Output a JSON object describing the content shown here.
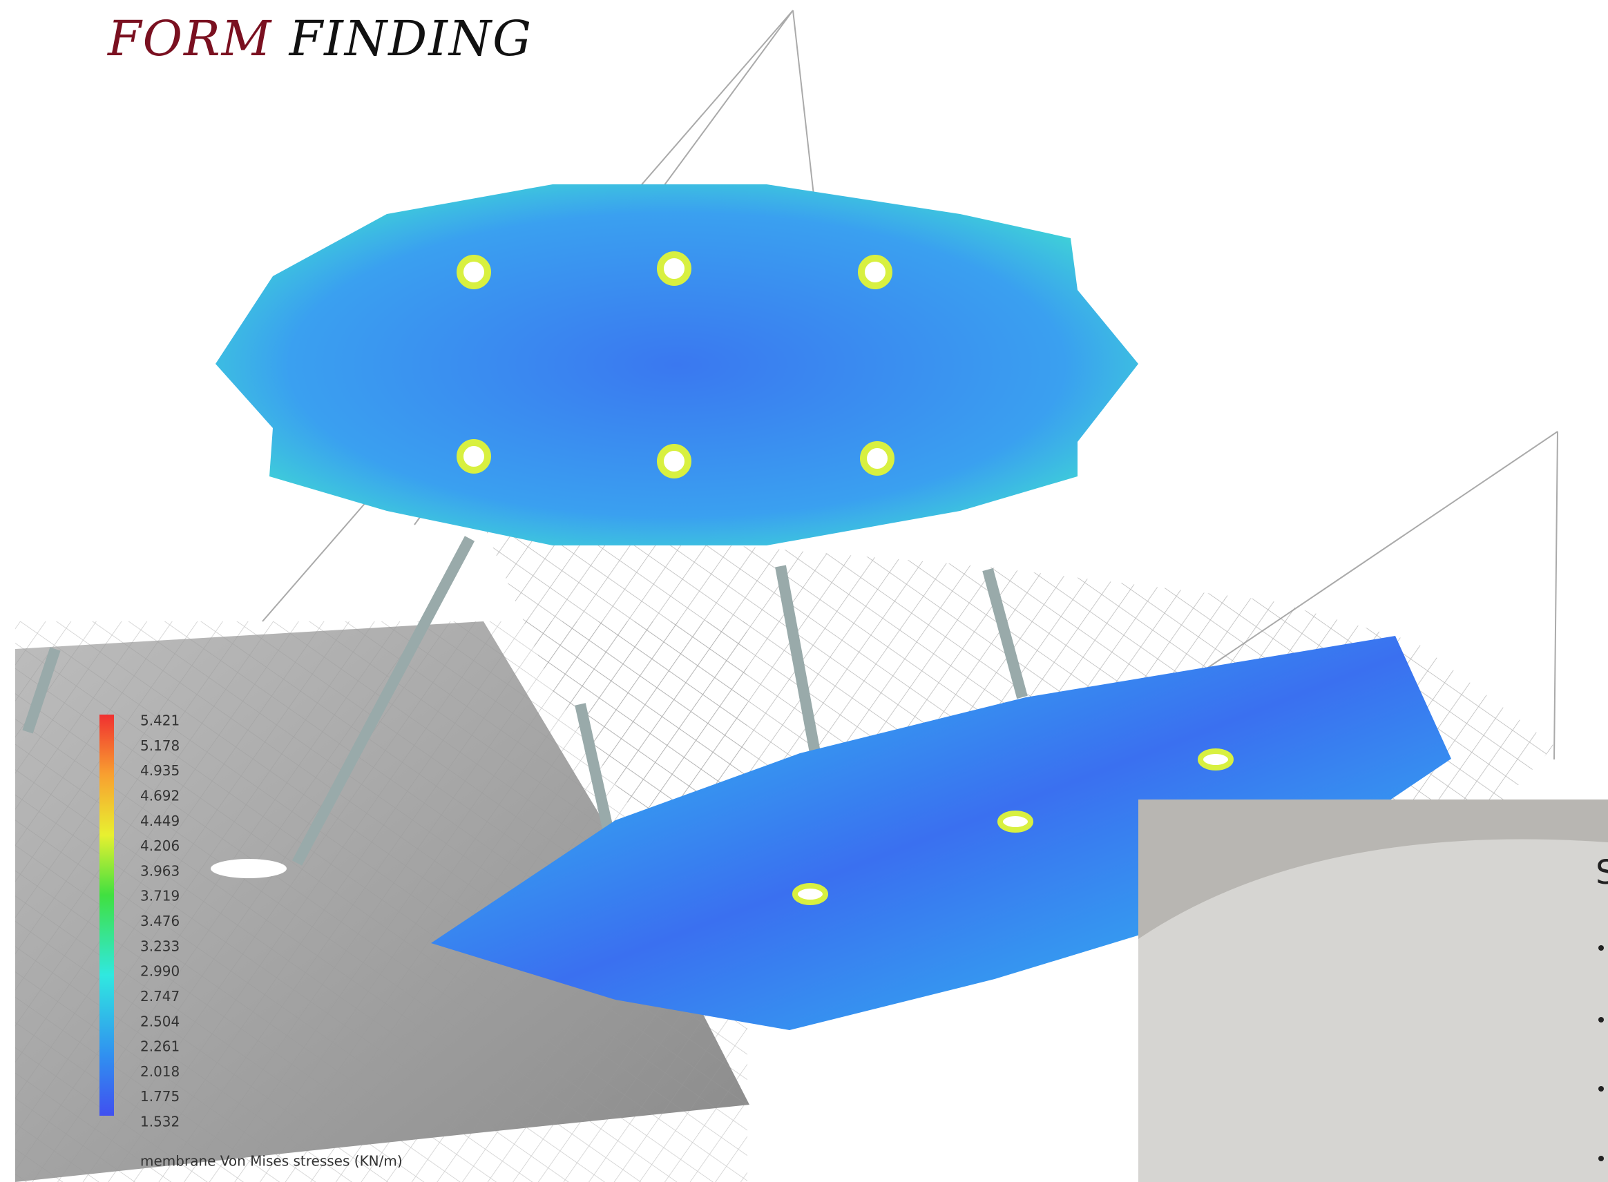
{
  "title": {
    "first": "FORM",
    "second": "FINDING"
  },
  "legend": {
    "values": [
      "5.421",
      "5.178",
      "4.935",
      "4.692",
      "4.449",
      "4.206",
      "3.963",
      "3.719",
      "3.476",
      "3.233",
      "2.990",
      "2.747",
      "2.504",
      "2.261",
      "2.018",
      "1.775",
      "1.532"
    ],
    "caption": "membrane Von Mises stresses (KN/m)"
  },
  "side_panel": {
    "heading": "S"
  }
}
